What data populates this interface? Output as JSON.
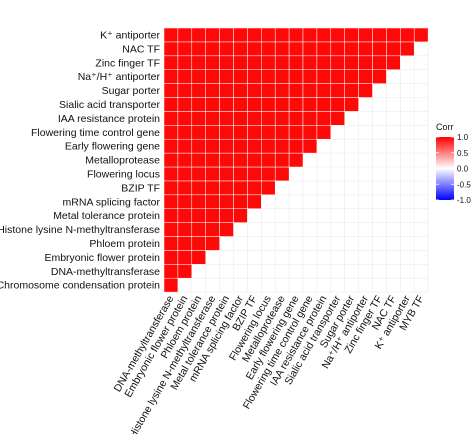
{
  "colors": {
    "panel_bg": "#ffffff",
    "grid": "#ebebeb",
    "cell_border": "#ffffff",
    "low": "#0000ff",
    "mid": "#ffffff",
    "high": "#ff0000",
    "text": "#111111"
  },
  "chart_data": {
    "type": "heatmap",
    "layout": "lower-triangle correlation matrix",
    "variables": [
      "Chromosome condensation protein",
      "DNA-methyltransferase",
      "Embryonic flower protein",
      "Phloem protein",
      "Histone lysine N-methyltransferase",
      "Metal tolerance protein",
      "mRNA splicing factor",
      "BZIP TF",
      "Flowering locus",
      "Metalloprotease",
      "Early flowering gene",
      "Flowering time control gene",
      "IAA resistance protein",
      "Sialic acid transporter",
      "Sugar porter",
      "Na⁺/H⁺ antiporter",
      "Zinc finger TF",
      "NAC TF",
      "K⁺ antiporter",
      "MYB TF"
    ],
    "y_labels": [
      "Chromosome condensation protein",
      "DNA-methyltransferase",
      "Embryonic flower protein",
      "Phloem protein",
      "Histone lysine N-methyltransferase",
      "Metal tolerance protein",
      "mRNA splicing factor",
      "BZIP TF",
      "Flowering locus",
      "Metalloprotease",
      "Early flowering gene",
      "Flowering time control gene",
      "IAA resistance protein",
      "Sialic acid transporter",
      "Sugar porter",
      "Na⁺/H⁺ antiporter",
      "Zinc finger TF",
      "NAC TF",
      "K⁺ antiporter"
    ],
    "x_labels": [
      "DNA-methyltransferase",
      "Embryonic flower protein",
      "Phloem protein",
      "Histone lysine N-methyltransferase",
      "Metal tolerance protein",
      "mRNA splicing factor",
      "BZIP TF",
      "Flowering locus",
      "Metalloprotease",
      "Early flowering gene",
      "Flowering time control gene",
      "IAA resistance protein",
      "Sialic acid transporter",
      "Sugar porter",
      "Na⁺/H⁺ antiporter",
      "Zinc finger TF",
      "NAC TF",
      "K⁺ antiporter",
      "MYB TF"
    ],
    "cell_value_note": "all displayed correlations ≈ 1 (solid red)",
    "value": 0.97,
    "legend": {
      "title": "Corr",
      "ticks": [
        "1.0",
        "0.5",
        "0.0",
        "-0.5",
        "-1.0"
      ],
      "range": [
        -1,
        1
      ],
      "position": "right"
    },
    "grid": true
  }
}
